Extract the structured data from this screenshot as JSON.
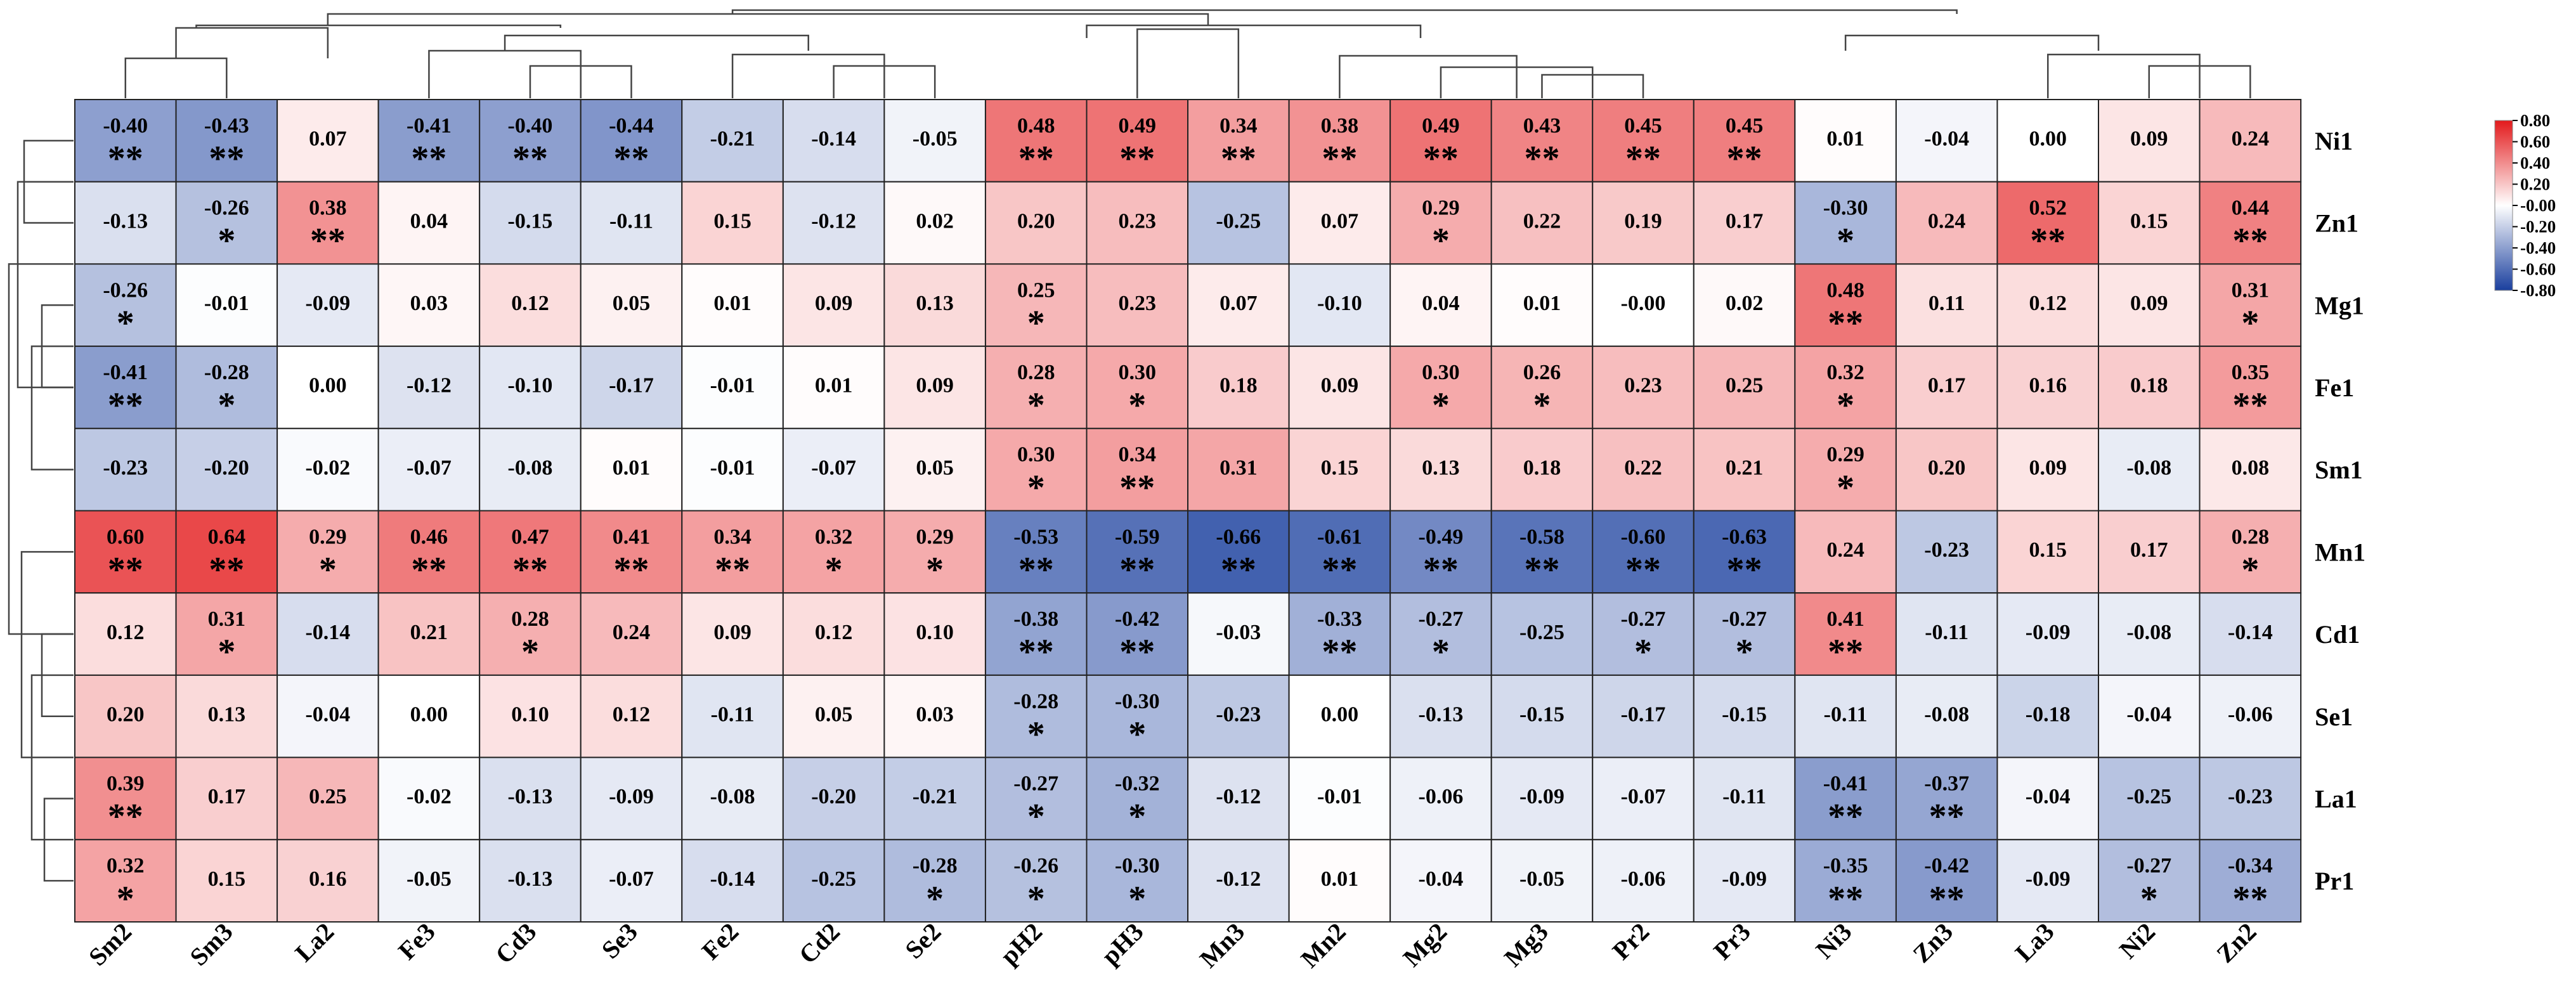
{
  "chart_data": {
    "type": "heatmap",
    "title": "",
    "rows": [
      "Ni1",
      "Zn1",
      "Mg1",
      "Fe1",
      "Sm1",
      "Mn1",
      "Cd1",
      "Se1",
      "La1",
      "Pr1"
    ],
    "columns": [
      "Sm2",
      "Sm3",
      "La2",
      "Fe3",
      "Cd3",
      "Se3",
      "Fe2",
      "Cd2",
      "Se2",
      "pH2",
      "pH3",
      "Mn3",
      "Mn2",
      "Mg2",
      "Mg3",
      "Pr2",
      "Pr3",
      "Ni3",
      "Zn3",
      "La3",
      "Ni2",
      "Zn2"
    ],
    "values": [
      [
        "-0.40",
        "-0.43",
        "0.07",
        "-0.41",
        "-0.40",
        "-0.44",
        "-0.21",
        "-0.14",
        "-0.05",
        "0.48",
        "0.49",
        "0.34",
        "0.38",
        "0.49",
        "0.43",
        "0.45",
        "0.45",
        "0.01",
        "-0.04",
        "0.00",
        "0.09",
        "0.24"
      ],
      [
        "-0.13",
        "-0.26",
        "0.38",
        "0.04",
        "-0.15",
        "-0.11",
        "0.15",
        "-0.12",
        "0.02",
        "0.20",
        "0.23",
        "-0.25",
        "0.07",
        "0.29",
        "0.22",
        "0.19",
        "0.17",
        "-0.30",
        "0.24",
        "0.52",
        "0.15",
        "0.44"
      ],
      [
        "-0.26",
        "-0.01",
        "-0.09",
        "0.03",
        "0.12",
        "0.05",
        "0.01",
        "0.09",
        "0.13",
        "0.25",
        "0.23",
        "0.07",
        "-0.10",
        "0.04",
        "0.01",
        "-0.00",
        "0.02",
        "0.48",
        "0.11",
        "0.12",
        "0.09",
        "0.31"
      ],
      [
        "-0.41",
        "-0.28",
        "0.00",
        "-0.12",
        "-0.10",
        "-0.17",
        "-0.01",
        "0.01",
        "0.09",
        "0.28",
        "0.30",
        "0.18",
        "0.09",
        "0.30",
        "0.26",
        "0.23",
        "0.25",
        "0.32",
        "0.17",
        "0.16",
        "0.18",
        "0.35"
      ],
      [
        "-0.23",
        "-0.20",
        "-0.02",
        "-0.07",
        "-0.08",
        "0.01",
        "-0.01",
        "-0.07",
        "0.05",
        "0.30",
        "0.34",
        "0.31",
        "0.15",
        "0.13",
        "0.18",
        "0.22",
        "0.21",
        "0.29",
        "0.20",
        "0.09",
        "-0.08",
        "0.08"
      ],
      [
        "0.60",
        "0.64",
        "0.29",
        "0.46",
        "0.47",
        "0.41",
        "0.34",
        "0.32",
        "0.29",
        "-0.53",
        "-0.59",
        "-0.66",
        "-0.61",
        "-0.49",
        "-0.58",
        "-0.60",
        "-0.63",
        "0.24",
        "-0.23",
        "0.15",
        "0.17",
        "0.28"
      ],
      [
        "0.12",
        "0.31",
        "-0.14",
        "0.21",
        "0.28",
        "0.24",
        "0.09",
        "0.12",
        "0.10",
        "-0.38",
        "-0.42",
        "-0.03",
        "-0.33",
        "-0.27",
        "-0.25",
        "-0.27",
        "-0.27",
        "0.41",
        "-0.11",
        "-0.09",
        "-0.08",
        "-0.14"
      ],
      [
        "0.20",
        "0.13",
        "-0.04",
        "0.00",
        "0.10",
        "0.12",
        "-0.11",
        "0.05",
        "0.03",
        "-0.28",
        "-0.30",
        "-0.23",
        "0.00",
        "-0.13",
        "-0.15",
        "-0.17",
        "-0.15",
        "-0.11",
        "-0.08",
        "-0.18",
        "-0.04",
        "-0.06"
      ],
      [
        "0.39",
        "0.17",
        "0.25",
        "-0.02",
        "-0.13",
        "-0.09",
        "-0.08",
        "-0.20",
        "-0.21",
        "-0.27",
        "-0.32",
        "-0.12",
        "-0.01",
        "-0.06",
        "-0.09",
        "-0.07",
        "-0.11",
        "-0.41",
        "-0.37",
        "-0.04",
        "-0.25",
        "-0.23"
      ],
      [
        "0.32",
        "0.15",
        "0.16",
        "-0.05",
        "-0.13",
        "-0.07",
        "-0.14",
        "-0.25",
        "-0.28",
        "-0.26",
        "-0.30",
        "-0.12",
        "0.01",
        "-0.04",
        "-0.05",
        "-0.06",
        "-0.09",
        "-0.35",
        "-0.42",
        "-0.09",
        "-0.27",
        "-0.34"
      ]
    ],
    "significance": [
      [
        "**",
        "**",
        "",
        "**",
        "**",
        "**",
        "",
        "",
        "",
        "**",
        "**",
        "**",
        "**",
        "**",
        "**",
        "**",
        "**",
        "",
        "",
        "",
        "",
        ""
      ],
      [
        "",
        "*",
        "**",
        "",
        "",
        "",
        "",
        "",
        "",
        "",
        "",
        "",
        "",
        "*",
        "",
        "",
        "",
        "*",
        "",
        "**",
        "",
        "**"
      ],
      [
        "*",
        "",
        "",
        "",
        "",
        "",
        "",
        "",
        "",
        "*",
        "",
        "",
        "",
        "",
        "",
        "",
        "",
        "**",
        "",
        "",
        "",
        "*"
      ],
      [
        "**",
        "*",
        "",
        "",
        "",
        "",
        "",
        "",
        "",
        "*",
        "*",
        "",
        "",
        "*",
        "*",
        "",
        "",
        "*",
        "",
        "",
        "",
        "**"
      ],
      [
        "",
        "",
        "",
        "",
        "",
        "",
        "",
        "",
        "",
        "*",
        "**",
        "",
        "",
        "",
        "",
        "",
        "",
        "*",
        "",
        "",
        "",
        ""
      ],
      [
        "**",
        "**",
        "*",
        "**",
        "**",
        "**",
        "**",
        "*",
        "*",
        "**",
        "**",
        "**",
        "**",
        "**",
        "**",
        "**",
        "**",
        "",
        "",
        "",
        "",
        "*"
      ],
      [
        "",
        "*",
        "",
        "",
        "*",
        "",
        "",
        "",
        "",
        "**",
        "**",
        "",
        "**",
        "*",
        "",
        "*",
        "*",
        "**",
        "",
        "",
        "",
        ""
      ],
      [
        "",
        "",
        "",
        "",
        "",
        "",
        "",
        "",
        "",
        "*",
        "*",
        "",
        "",
        "",
        "",
        "",
        "",
        "",
        "",
        "",
        "",
        ""
      ],
      [
        "**",
        "",
        "",
        "",
        "",
        "",
        "",
        "",
        "",
        "*",
        "*",
        "",
        "",
        "",
        "",
        "",
        "",
        "**",
        "**",
        "",
        "",
        ""
      ],
      [
        "*",
        "",
        "",
        "",
        "",
        "",
        "",
        "",
        "*",
        "*",
        "*",
        "",
        "",
        "",
        "",
        "",
        "",
        "**",
        "**",
        "",
        "*",
        "**"
      ]
    ],
    "color_scale": {
      "min": -0.8,
      "max": 0.8,
      "low_color": "#1a3f9e",
      "mid_color": "#ffffff",
      "high_color": "#e31a1c",
      "ticks": [
        "0.80",
        "0.60",
        "0.40",
        "0.20",
        "-0.00",
        "-0.20",
        "-0.40",
        "-0.60",
        "-0.80"
      ]
    },
    "legend_position": "top-right",
    "column_dendrogram": "top",
    "row_dendrogram": "left"
  }
}
